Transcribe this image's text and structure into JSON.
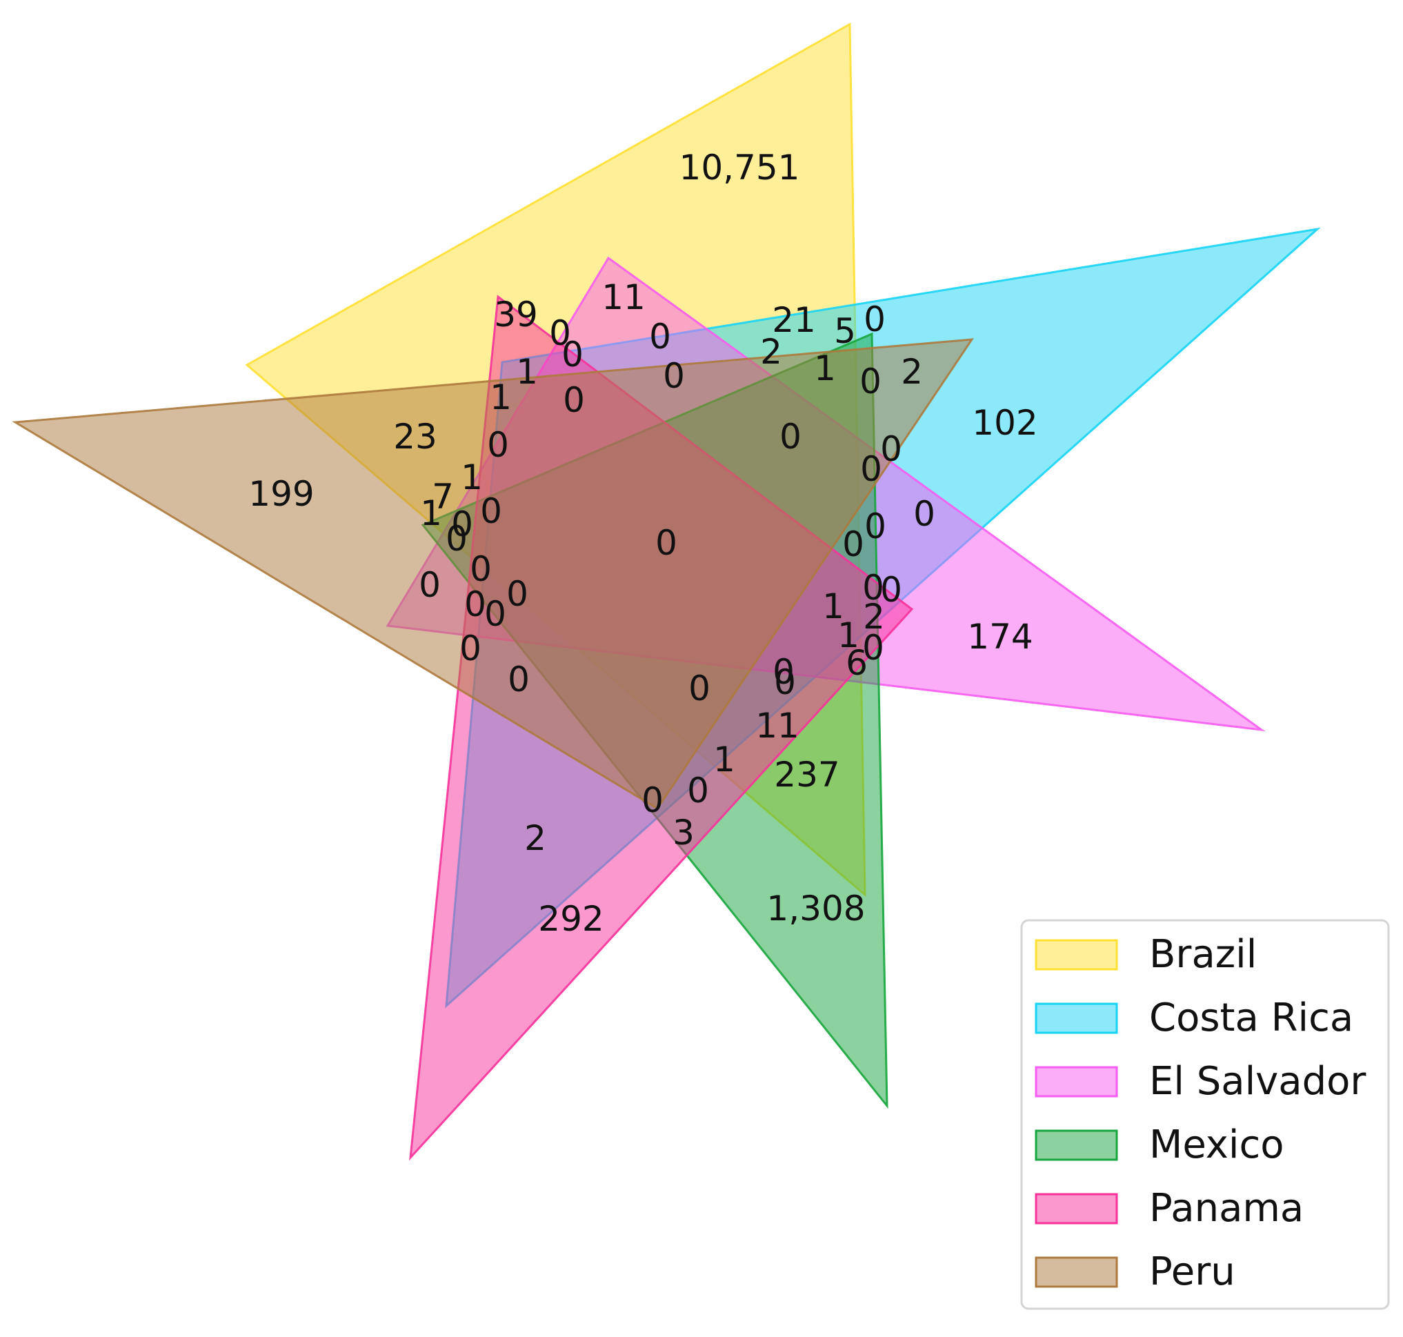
{
  "diagram": {
    "type": "venn",
    "sets": [
      {
        "name": "Brazil",
        "color": "#FFE033"
      },
      {
        "name": "Costa Rica",
        "color": "#17D4F5"
      },
      {
        "name": "El Salvador",
        "color": "#F75CF0"
      },
      {
        "name": "Mexico",
        "color": "#17A63D"
      },
      {
        "name": "Panama",
        "color": "#F7329B"
      },
      {
        "name": "Peru",
        "color": "#AD7A3D"
      }
    ],
    "region_counts": [
      "10,751",
      "102",
      "174",
      "1,308",
      "292",
      "199",
      "11",
      "39",
      "21",
      "5",
      "0",
      "0",
      "2",
      "1",
      "2",
      "0",
      "0",
      "0",
      "1",
      "0",
      "23",
      "1",
      "0",
      "0",
      "1",
      "7",
      "1",
      "0",
      "0",
      "0",
      "0",
      "0",
      "0",
      "0",
      "0",
      "0",
      "0",
      "0",
      "0",
      "0",
      "0",
      "0",
      "0",
      "0",
      "0",
      "0",
      "1",
      "2",
      "1",
      "0",
      "6",
      "0",
      "0",
      "0",
      "11",
      "1",
      "237",
      "0",
      "0",
      "3",
      "2"
    ]
  }
}
